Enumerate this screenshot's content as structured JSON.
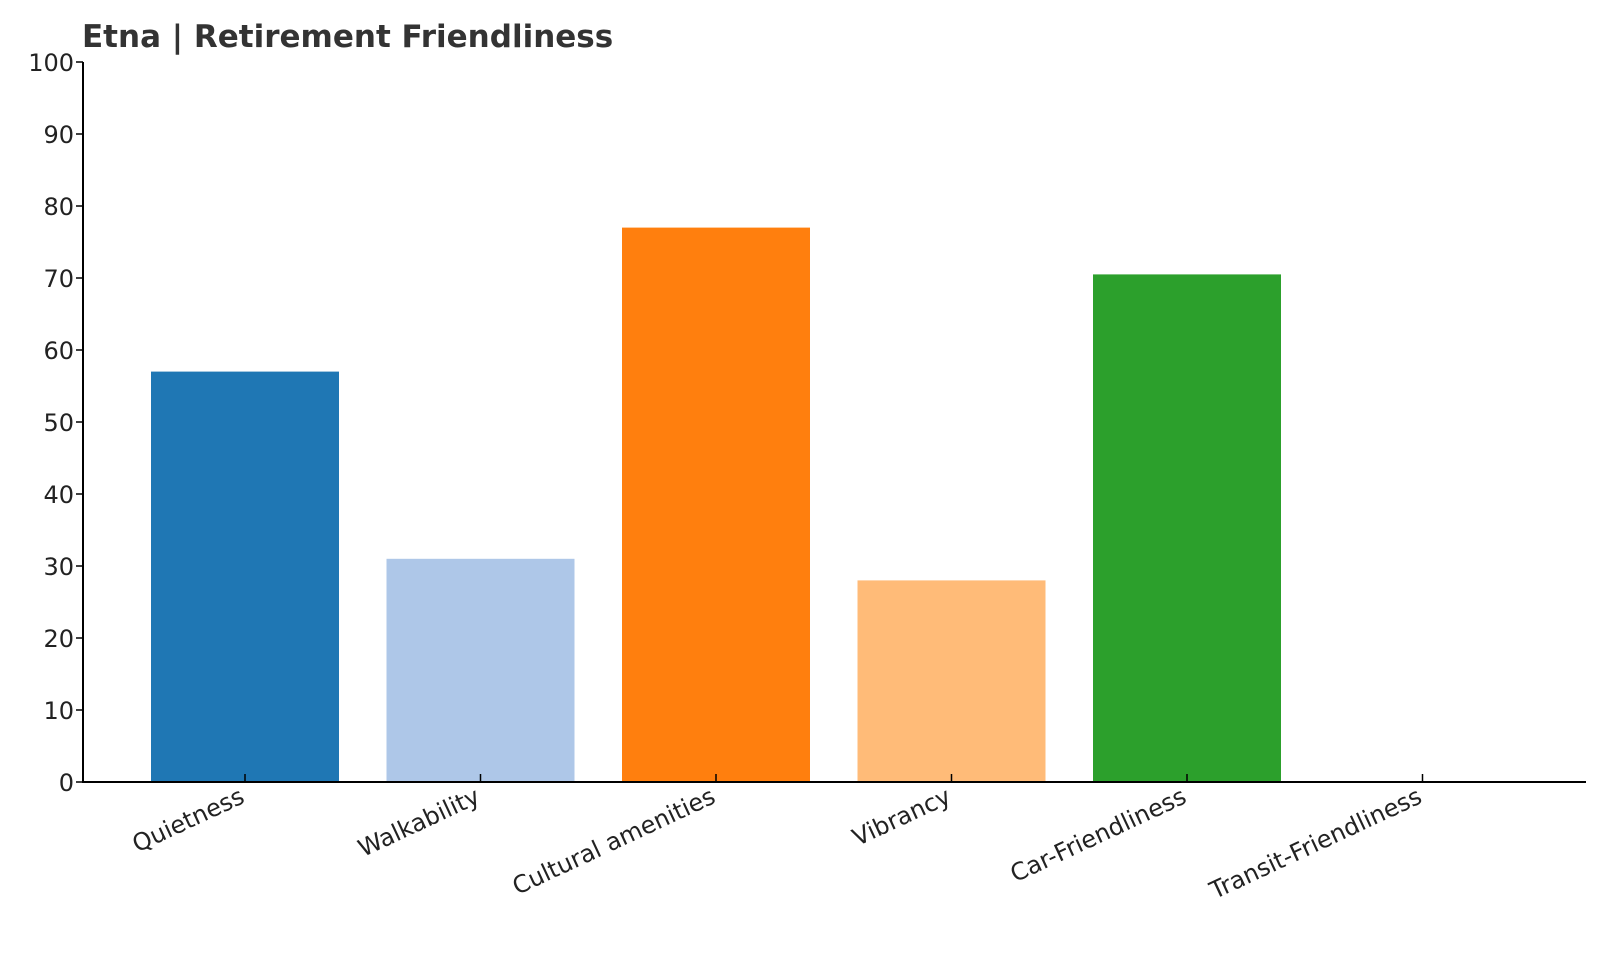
{
  "chart_data": {
    "type": "bar",
    "title": "Etna | Retirement Friendliness",
    "xlabel": "",
    "ylabel": "",
    "categories": [
      "Quietness",
      "Walkability",
      "Cultural amenities",
      "Vibrancy",
      "Car-Friendliness",
      "Transit-Friendliness"
    ],
    "values": [
      57,
      31,
      77,
      28,
      70.5,
      0
    ],
    "colors": [
      "#1f77b4",
      "#aec7e8",
      "#ff7f0e",
      "#ffbb78",
      "#2ca02c",
      "#98df8a"
    ],
    "ylim": [
      0,
      100
    ],
    "yticks": [
      0,
      10,
      20,
      30,
      40,
      50,
      60,
      70,
      80,
      90,
      100
    ],
    "grid": false,
    "legend": "none"
  }
}
